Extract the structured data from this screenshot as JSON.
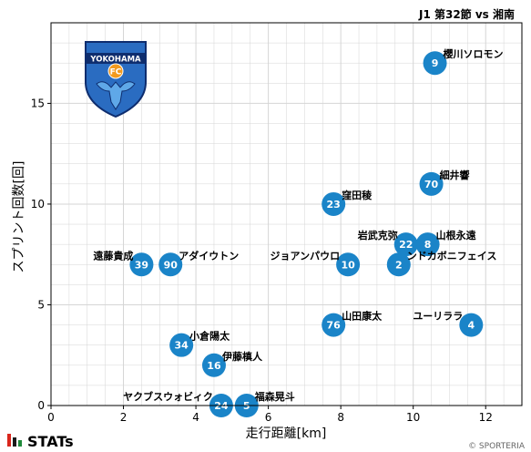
{
  "header": {
    "title": "J1 第32節 vs 湘南"
  },
  "brand": {
    "name": "STATs",
    "credit": "© SPORTERIA"
  },
  "logo": {
    "name": "YOKOHAMA",
    "abbr": "FC"
  },
  "colors": {
    "marker": "#1a84c8",
    "marker_text": "#ffffff",
    "grid": "#d5d5d5",
    "brand_bar_red": "#d9261c",
    "brand_bar_green": "#1f8a3b",
    "logo_blue": "#2a6cc1",
    "logo_navy": "#0e2d6e",
    "logo_orange": "#f39a1e"
  },
  "chart_data": {
    "type": "scatter",
    "xlabel": "走行距離[km]",
    "ylabel": "スプリント回数[回]",
    "xlim": [
      0,
      13
    ],
    "ylim": [
      0,
      19
    ],
    "xticks": [
      0,
      2,
      4,
      6,
      8,
      10,
      12
    ],
    "yticks": [
      0,
      5,
      10,
      15
    ],
    "grid": true,
    "points": [
      {
        "number": "9",
        "name": "櫻川ソロモン",
        "x": 10.6,
        "y": 17,
        "label_pos": "right-up"
      },
      {
        "number": "70",
        "name": "細井響",
        "x": 10.5,
        "y": 11,
        "label_pos": "right-up"
      },
      {
        "number": "23",
        "name": "窪田稜",
        "x": 7.8,
        "y": 10,
        "label_pos": "right-up"
      },
      {
        "number": "22",
        "name": "岩武克弥",
        "x": 9.8,
        "y": 8,
        "label_pos": "left-up"
      },
      {
        "number": "8",
        "name": "山根永遠",
        "x": 10.4,
        "y": 8,
        "label_pos": "right-up"
      },
      {
        "number": "39",
        "name": "遠藤貴成",
        "x": 2.5,
        "y": 7,
        "label_pos": "left-up"
      },
      {
        "number": "90",
        "name": "アダイウトン",
        "x": 3.3,
        "y": 7,
        "label_pos": "right-up"
      },
      {
        "number": "10",
        "name": "ジョアンパウロ",
        "x": 8.2,
        "y": 7,
        "label_pos": "left-up"
      },
      {
        "number": "2",
        "name": "ンドカボニフェイス",
        "x": 9.6,
        "y": 7,
        "label_pos": "right-up"
      },
      {
        "number": "76",
        "name": "山田康太",
        "x": 7.8,
        "y": 4,
        "label_pos": "right-up"
      },
      {
        "number": "4",
        "name": "ユーリララ",
        "x": 11.6,
        "y": 4,
        "label_pos": "left-up"
      },
      {
        "number": "34",
        "name": "小倉陽太",
        "x": 3.6,
        "y": 3,
        "label_pos": "right-up"
      },
      {
        "number": "16",
        "name": "伊藤槙人",
        "x": 4.5,
        "y": 2,
        "label_pos": "right-up"
      },
      {
        "number": "24",
        "name": "ヤクブスウォビィク",
        "x": 4.7,
        "y": 0,
        "label_pos": "left-up"
      },
      {
        "number": "5",
        "name": "福森晃斗",
        "x": 5.4,
        "y": 0,
        "label_pos": "right-up"
      }
    ]
  }
}
